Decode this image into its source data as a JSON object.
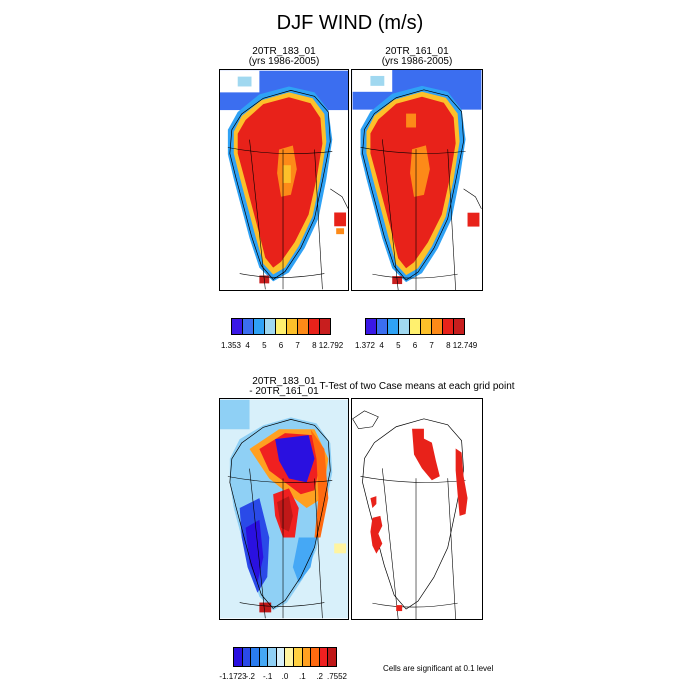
{
  "figure_title": "DJF WIND (m/s)",
  "panels": [
    {
      "title_line1": "20TR_183_01",
      "title_line2": "(yrs 1986-2005)"
    },
    {
      "title_line1": "20TR_161_01",
      "title_line2": "(yrs 1986-2005)"
    },
    {
      "title_line1": "20TR_183_01",
      "title_line2": "- 20TR_161_01"
    },
    {
      "title_line1": "T-Test of two Case means at each grid point",
      "title_line2": ""
    }
  ],
  "colorbars": [
    {
      "colors": [
        "#3a18e6",
        "#3b6ef0",
        "#2fa2f5",
        "#a0d8f0",
        "#fff06e",
        "#fdc02a",
        "#fd8a18",
        "#e8221a",
        "#c81e1e"
      ],
      "labels": [
        "1.353",
        "4",
        "5",
        "6",
        "7",
        "8",
        "12.792"
      ]
    },
    {
      "colors": [
        "#3a18e6",
        "#3b6ef0",
        "#2fa2f5",
        "#a0d8f0",
        "#fff06e",
        "#fdc02a",
        "#fd8a18",
        "#e8221a",
        "#c81e1e"
      ],
      "labels": [
        "1.372",
        "4",
        "5",
        "6",
        "7",
        "8",
        "12.749"
      ]
    },
    {
      "colors": [
        "#2a10e0",
        "#2a4ae8",
        "#2a7cf0",
        "#45a8f5",
        "#8fd0f5",
        "#d8f0fa",
        "#fff4a0",
        "#ffd040",
        "#ffa020",
        "#ff6a10",
        "#f02020",
        "#c01818"
      ],
      "labels": [
        "-1.1723",
        "-.2",
        "-.1",
        ".0",
        ".1",
        ".2",
        ".7552"
      ]
    }
  ],
  "significance_note": "Cells are significant at 0.1 level"
}
